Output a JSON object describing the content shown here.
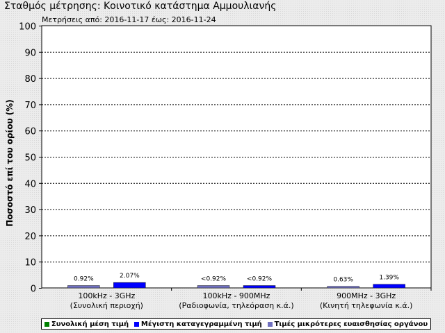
{
  "title": "Σταθμός μέτρησης: Κοινοτικό κατάστημα Αμμουλιανής",
  "subtitle": "Μετρήσεις από: 2016-11-17 έως: 2016-11-24",
  "chart_data": {
    "type": "bar",
    "ylabel": "Ποσοστό επί του ορίου (%)",
    "ylim": [
      0,
      100
    ],
    "yticks": [
      0,
      10,
      20,
      30,
      40,
      50,
      60,
      70,
      80,
      90,
      100
    ],
    "grid": true,
    "legend_position": "bottom",
    "categories": [
      {
        "line1": "100kHz - 3GHz",
        "line2": "(Συνολική περιοχή)"
      },
      {
        "line1": "100kHz - 900MHz",
        "line2": "(Ραδιοφωνία, τηλεόραση κ.ά.)"
      },
      {
        "line1": "900MHz - 3GHz",
        "line2": "(Κινητή τηλεφωνία κ.ά.)"
      }
    ],
    "series": [
      {
        "name": "Συνολική μέση τιμή",
        "color": "#008000",
        "values": [
          null,
          null,
          null
        ]
      },
      {
        "name": "Μέγιστη καταγεγραμμένη τιμή",
        "color": "#0000ff",
        "values": [
          2.07,
          0.92,
          1.39
        ],
        "labels": [
          "2.07%",
          "<0.92%",
          "1.39%"
        ]
      },
      {
        "name": "Τιμές μικρότερες ευαισθησίας οργάνου",
        "color": "#7070c0",
        "values": [
          0.92,
          0.92,
          0.63
        ],
        "labels": [
          "0.92%",
          "<0.92%",
          "0.63%"
        ]
      }
    ]
  }
}
